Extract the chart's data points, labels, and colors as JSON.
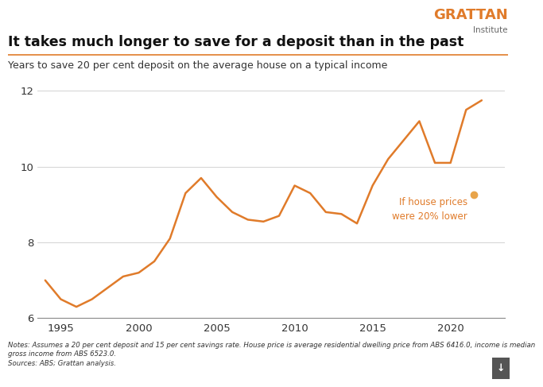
{
  "title": "It takes much longer to save for a deposit than in the past",
  "subtitle": "Years to save 20 per cent deposit on the average house on a typical income",
  "footnote": "Notes: Assumes a 20 per cent deposit and 15 per cent savings rate. House price is average residential dwelling price from ABS 6416.0, income is median\ngross income from ABS 6523.0.\nSources: ABS; Grattan analysis.",
  "line_color": "#E07B2A",
  "dot_color": "#E8A44A",
  "background_color": "#FFFFFF",
  "grattan_orange": "#E07B2A",
  "xlim": [
    1993.5,
    2023.5
  ],
  "ylim": [
    6,
    12.5
  ],
  "yticks": [
    6,
    8,
    10,
    12
  ],
  "xticks": [
    1995,
    2000,
    2005,
    2010,
    2015,
    2020
  ],
  "years": [
    1994,
    1995,
    1996,
    1997,
    1998,
    1999,
    2000,
    2001,
    2002,
    2003,
    2004,
    2005,
    2006,
    2007,
    2008,
    2009,
    2010,
    2011,
    2012,
    2013,
    2014,
    2015,
    2016,
    2017,
    2018,
    2019,
    2020,
    2021,
    2022
  ],
  "values": [
    7.0,
    6.5,
    6.3,
    6.5,
    6.8,
    7.1,
    7.2,
    7.5,
    8.1,
    9.3,
    9.7,
    9.2,
    8.8,
    8.6,
    8.55,
    8.7,
    9.5,
    9.3,
    8.8,
    8.75,
    8.5,
    9.5,
    10.2,
    10.7,
    11.2,
    10.1,
    10.1,
    11.5,
    11.75
  ],
  "dot_year": 2021.5,
  "dot_value": 9.25,
  "dot_label": "If house prices\nwere 20% lower"
}
